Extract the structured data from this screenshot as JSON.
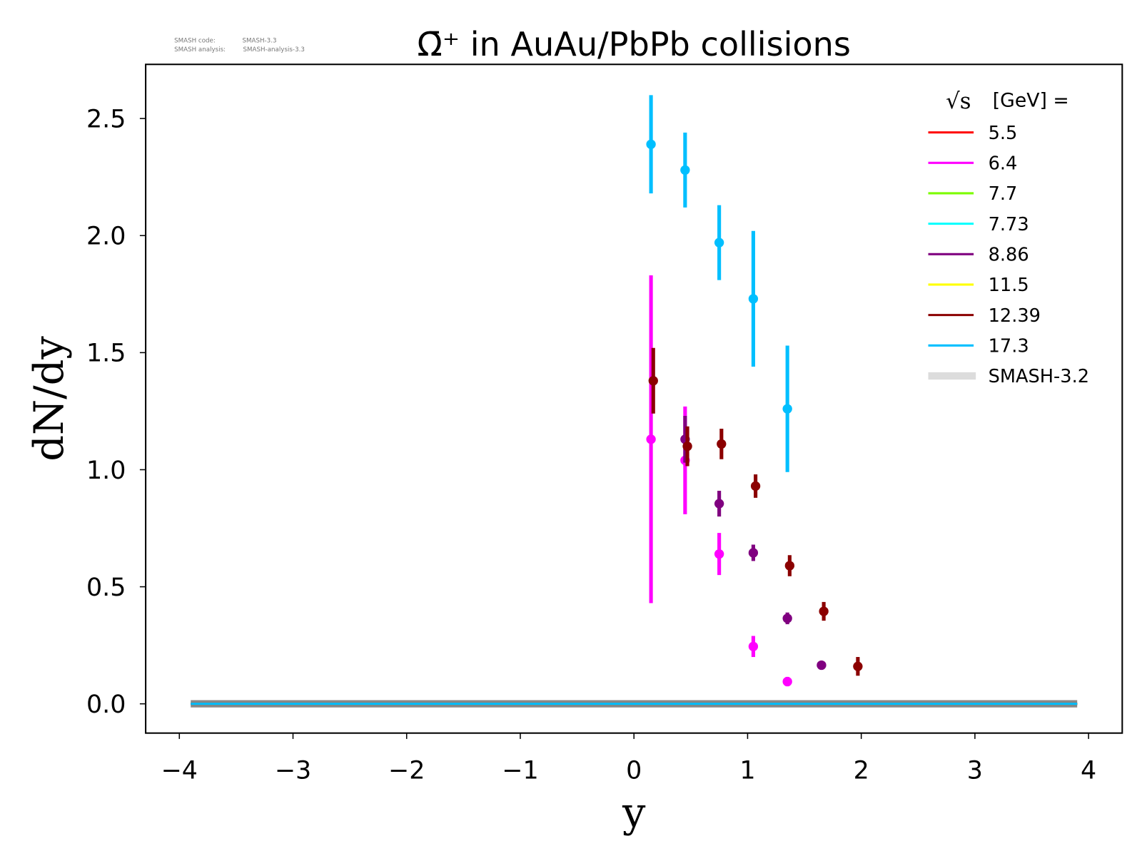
{
  "chart_data": {
    "type": "scatter",
    "title": "Ω̄⁺ in AuAu/PbPb collisions",
    "xlabel": "y",
    "ylabel": "dN/dy",
    "xlim": [
      -4.3,
      4.3
    ],
    "ylim": [
      -0.13,
      2.73
    ],
    "xticks": [
      "−4",
      "−3",
      "−2",
      "−1",
      "0",
      "1",
      "2",
      "3",
      "4"
    ],
    "xtick_values": [
      -4,
      -3,
      -2,
      -1,
      0,
      1,
      2,
      3,
      4
    ],
    "yticks": [
      "0.0",
      "0.5",
      "1.0",
      "1.5",
      "2.0",
      "2.5"
    ],
    "ytick_values": [
      0,
      0.5,
      1.0,
      1.5,
      2.0,
      2.5
    ],
    "grid": false,
    "legend": {
      "placement": "top-right",
      "title_sqrt": "√s",
      "title_rest": "[GeV] =",
      "model_label": "SMASH-3.2",
      "model_color": "#dcdcdc"
    },
    "annotation": {
      "line1_label": "SMASH code:",
      "line1_value": "SMASH-3.3",
      "line2_label": "SMASH analysis:",
      "line2_value": "SMASH-analysis-3.3"
    },
    "model_range": [
      -3.9,
      3.9
    ],
    "series": [
      {
        "name": "5.5",
        "color": "#ff0000",
        "x": [],
        "y": [],
        "err": []
      },
      {
        "name": "6.4",
        "color": "#ff00ff",
        "x": [
          0.15,
          0.45,
          0.75,
          1.05,
          1.35
        ],
        "y": [
          1.13,
          1.04,
          0.64,
          0.245,
          0.095
        ],
        "err": [
          0.7,
          0.23,
          0.09,
          0.045,
          0.02
        ]
      },
      {
        "name": "7.7",
        "color": "#7cfc00",
        "x": [],
        "y": [],
        "err": []
      },
      {
        "name": "7.73",
        "color": "#00ffff",
        "x": [],
        "y": [],
        "err": []
      },
      {
        "name": "8.86",
        "color": "#800080",
        "x": [
          0.45,
          0.75,
          1.05,
          1.35,
          1.65
        ],
        "y": [
          1.13,
          0.855,
          0.645,
          0.365,
          0.165
        ],
        "err": [
          0.1,
          0.055,
          0.035,
          0.025,
          0.01
        ]
      },
      {
        "name": "11.5",
        "color": "#ffff00",
        "x": [],
        "y": [],
        "err": []
      },
      {
        "name": "12.39",
        "color": "#8b0000",
        "x": [
          0.17,
          0.47,
          0.77,
          1.07,
          1.37,
          1.67,
          1.97
        ],
        "y": [
          1.38,
          1.1,
          1.11,
          0.93,
          0.59,
          0.395,
          0.16
        ],
        "err": [
          0.14,
          0.085,
          0.065,
          0.05,
          0.045,
          0.04,
          0.04
        ]
      },
      {
        "name": "17.3",
        "color": "#00bfff",
        "x": [
          0.15,
          0.45,
          0.75,
          1.05,
          1.35
        ],
        "y": [
          2.39,
          2.28,
          1.97,
          1.73,
          1.26
        ],
        "err": [
          0.21,
          0.16,
          0.16,
          0.29,
          0.27
        ]
      }
    ]
  }
}
